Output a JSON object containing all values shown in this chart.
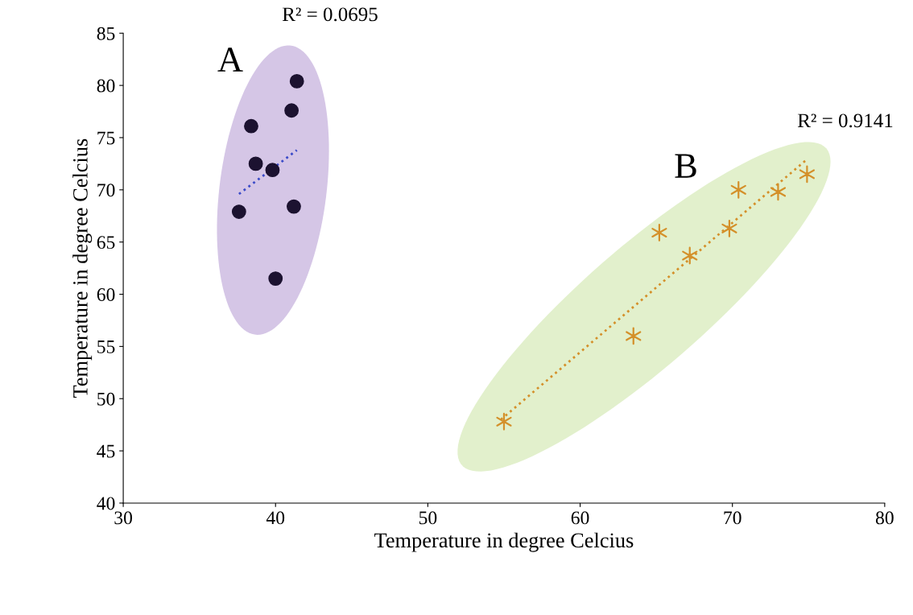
{
  "chart_data": {
    "type": "scatter",
    "xlabel": "Temperature in degree Celcius",
    "ylabel": "Temperature in degree Celcius",
    "xlim": [
      30,
      80
    ],
    "xticks": [
      30,
      40,
      50,
      60,
      70,
      80
    ],
    "ylim": [
      40,
      85
    ],
    "yticks": [
      40,
      45,
      50,
      55,
      60,
      65,
      70,
      75,
      80,
      85
    ],
    "grid": false,
    "legend": false,
    "series": [
      {
        "type": "scatter",
        "color": "#1c1230",
        "marker": "circle",
        "x": [
          41.4,
          41.05,
          38.4,
          38.7,
          39.8,
          37.6,
          41.2,
          40.0
        ],
        "values": [
          80.4,
          77.6,
          76.1,
          72.5,
          71.9,
          67.9,
          68.4,
          61.5
        ]
      },
      {
        "type": "line",
        "color": "#3b4bc8",
        "marker": "none",
        "line_style": "dotted",
        "x": [
          37.6,
          41.4
        ],
        "values": [
          69.6,
          73.8
        ]
      },
      {
        "type": "scatter",
        "color": "#d4902a",
        "marker": "cross",
        "x": [
          55.0,
          63.5,
          65.2,
          67.2,
          69.8,
          70.4,
          73.0,
          74.9
        ],
        "values": [
          47.8,
          56.0,
          65.9,
          63.7,
          66.3,
          70.0,
          69.8,
          71.5
        ]
      },
      {
        "type": "line",
        "color": "#d4902a",
        "marker": "none",
        "line_style": "dotted",
        "x": [
          54.8,
          74.8
        ],
        "values": [
          48.0,
          72.8
        ]
      }
    ],
    "annotations": [
      "R² = 0.0695",
      "A",
      "B",
      "R² = 0.9141"
    ]
  }
}
